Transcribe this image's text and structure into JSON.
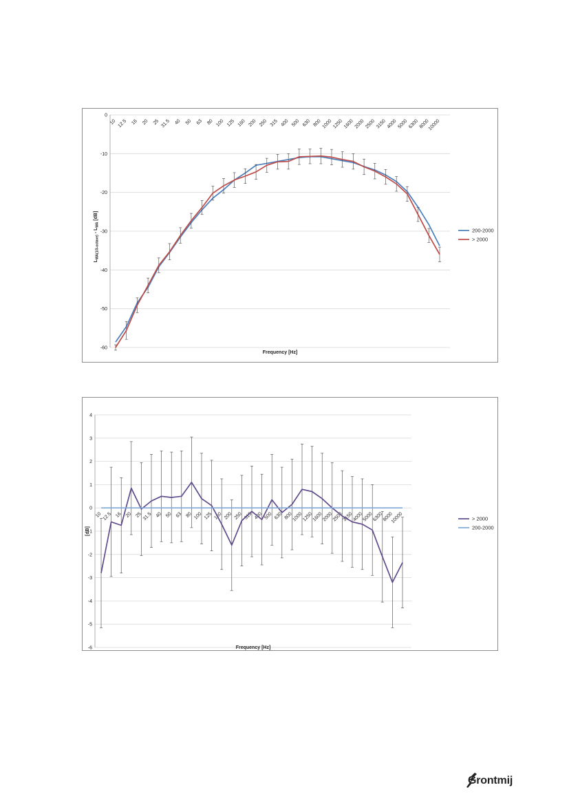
{
  "colors": {
    "blue": "#4a7ebb",
    "red": "#be4b48",
    "purple": "#5f4b8b",
    "lightblue": "#7ea6d8",
    "grid": "#d9d9d9",
    "errbar": "#404040"
  },
  "logo": {
    "text": "Grontmij",
    "icon": "grontmij-logo-icon"
  },
  "chart_data": [
    {
      "type": "line",
      "categories": [
        "10",
        "12.5",
        "16",
        "20",
        "25",
        "31.5",
        "40",
        "50",
        "63",
        "80",
        "100",
        "125",
        "160",
        "200",
        "250",
        "315",
        "400",
        "500",
        "630",
        "800",
        "1000",
        "1250",
        "1600",
        "2000",
        "2500",
        "3150",
        "4000",
        "5000",
        "6300",
        "8000",
        "10000"
      ],
      "ylabel": "L_WA(1/3-octave) - L_WA [dB]",
      "ylabel_main": "L",
      "ylabel_sub1": "WA(1/3-octave)",
      "ylabel_mid": " - L",
      "ylabel_sub2": "WA",
      "ylabel_unit": " [dB]",
      "xlabel": "Frequency [Hz]",
      "ylim": [
        -60,
        0
      ],
      "yticks": [
        "0",
        "-10",
        "-20",
        "-30",
        "-40",
        "-50",
        "-60"
      ],
      "ytick_values": [
        0,
        -10,
        -20,
        -30,
        -40,
        -50,
        -60
      ],
      "grid": true,
      "legend_position": "right",
      "series": [
        {
          "name": "200-2000",
          "color": "#4a7ebb",
          "values": [
            -58.6,
            -54.6,
            -48.5,
            -44.5,
            -39.2,
            -35.5,
            -31.5,
            -27.8,
            -24.5,
            -21.5,
            -19.3,
            -16.8,
            -15.0,
            -13.0,
            -12.5,
            -12.0,
            -11.5,
            -11.0,
            -10.8,
            -10.8,
            -11.3,
            -11.8,
            -12.3,
            -13.3,
            -14.2,
            -15.5,
            -17.2,
            -19.8,
            -23.8,
            -28.3,
            -33.8
          ],
          "errors": []
        },
        {
          "name": "> 2000",
          "color": "#be4b48",
          "values": [
            -60.0,
            -55.6,
            -49.1,
            -44.0,
            -38.8,
            -35.3,
            -31.1,
            -27.3,
            -23.9,
            -20.2,
            -18.3,
            -16.8,
            -15.8,
            -14.7,
            -13.0,
            -12.1,
            -12.0,
            -10.8,
            -10.7,
            -10.6,
            -10.9,
            -11.5,
            -12.0,
            -13.4,
            -14.5,
            -16.0,
            -17.8,
            -20.4,
            -25.7,
            -31.1,
            -36.0
          ],
          "errors": [
            0.7,
            2.3,
            1.9,
            1.9,
            1.9,
            2.1,
            2.0,
            1.9,
            1.8,
            1.8,
            1.9,
            1.9,
            1.9,
            1.9,
            1.8,
            1.9,
            2.0,
            2.0,
            1.9,
            2.0,
            2.0,
            2.0,
            2.0,
            2.0,
            2.0,
            1.9,
            1.9,
            1.9,
            1.8,
            1.8,
            1.9
          ]
        }
      ]
    },
    {
      "type": "line",
      "categories": [
        "10",
        "12.5",
        "16",
        "20",
        "25",
        "31.5",
        "40",
        "50",
        "63",
        "80",
        "100",
        "125",
        "160",
        "200",
        "250",
        "315",
        "400",
        "500",
        "630",
        "800",
        "1000",
        "1250",
        "1600",
        "2000",
        "2500",
        "3150",
        "4000",
        "5000",
        "6300",
        "8000",
        "10000"
      ],
      "ylabel": "[dB]",
      "xlabel": "Frequency [Hz]",
      "ylim": [
        -6,
        4
      ],
      "yticks": [
        "4",
        "3",
        "2",
        "1",
        "0",
        "-1",
        "-2",
        "-3",
        "-4",
        "-5",
        "-6"
      ],
      "ytick_values": [
        4,
        3,
        2,
        1,
        0,
        -1,
        -2,
        -3,
        -4,
        -5,
        -6
      ],
      "grid": true,
      "legend_position": "right",
      "series": [
        {
          "name": "> 2000",
          "color": "#5f4b8b",
          "values": [
            -2.8,
            -0.6,
            -0.75,
            0.85,
            -0.05,
            0.3,
            0.5,
            0.45,
            0.5,
            1.1,
            0.4,
            0.1,
            -0.7,
            -1.6,
            -0.55,
            -0.15,
            -0.5,
            0.35,
            -0.2,
            0.15,
            0.8,
            0.7,
            0.4,
            0.0,
            -0.35,
            -0.6,
            -0.7,
            -0.95,
            -2.1,
            -3.2,
            -2.35
          ],
          "errors": [
            2.35,
            2.35,
            2.05,
            2.0,
            2.0,
            2.0,
            1.95,
            1.95,
            1.95,
            1.95,
            1.95,
            1.95,
            1.95,
            1.95,
            1.95,
            1.95,
            1.95,
            1.95,
            1.95,
            1.95,
            1.95,
            1.95,
            1.95,
            1.95,
            1.95,
            1.95,
            1.95,
            1.95,
            1.95,
            1.95,
            1.95
          ]
        },
        {
          "name": "200-2000",
          "color": "#7ea6d8",
          "values": [
            0,
            0,
            0,
            0,
            0,
            0,
            0,
            0,
            0,
            0,
            0,
            0,
            0,
            0,
            0,
            0,
            0,
            0,
            0,
            0,
            0,
            0,
            0,
            0,
            0,
            0,
            0,
            0,
            0,
            0,
            0
          ],
          "errors": []
        }
      ]
    }
  ]
}
